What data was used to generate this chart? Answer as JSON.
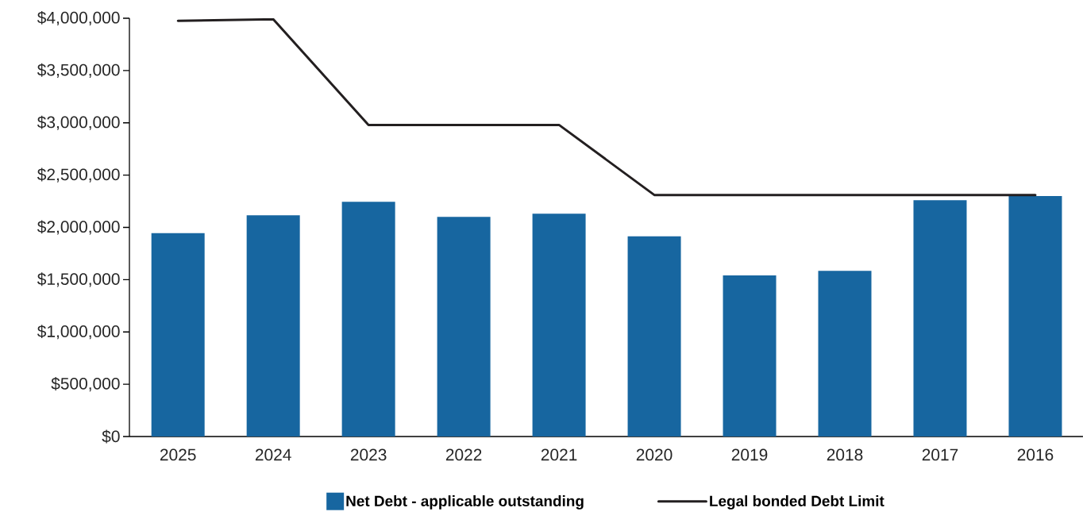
{
  "chart_data": {
    "type": "bar",
    "categories": [
      "2025",
      "2024",
      "2023",
      "2022",
      "2021",
      "2020",
      "2019",
      "2018",
      "2017",
      "2016"
    ],
    "series": [
      {
        "name": "Net Debt - applicable outstanding",
        "type": "bar",
        "color": "#1766a0",
        "values": [
          1945000,
          2115000,
          2245000,
          2100000,
          2130000,
          1915000,
          1540000,
          1585000,
          2260000,
          2300000
        ]
      },
      {
        "name": "Legal bonded Debt Limit",
        "type": "line",
        "color": "#231f20",
        "values": [
          3975000,
          3990000,
          2980000,
          2980000,
          2980000,
          2310000,
          2310000,
          2310000,
          2310000,
          2310000
        ]
      }
    ],
    "ylim": [
      0,
      4000000
    ],
    "yticks": [
      {
        "value": 0,
        "label": "$0"
      },
      {
        "value": 500000,
        "label": "$500,000"
      },
      {
        "value": 1000000,
        "label": "$1,000,000"
      },
      {
        "value": 1500000,
        "label": "$1,500,000"
      },
      {
        "value": 2000000,
        "label": "$2,000,000"
      },
      {
        "value": 2500000,
        "label": "$2,500,000"
      },
      {
        "value": 3000000,
        "label": "$3,000,000"
      },
      {
        "value": 3500000,
        "label": "$3,500,000"
      },
      {
        "value": 4000000,
        "label": "$4,000,000"
      }
    ],
    "legend": "bottom",
    "marker": "none",
    "line_style": "solid",
    "grid": false
  }
}
